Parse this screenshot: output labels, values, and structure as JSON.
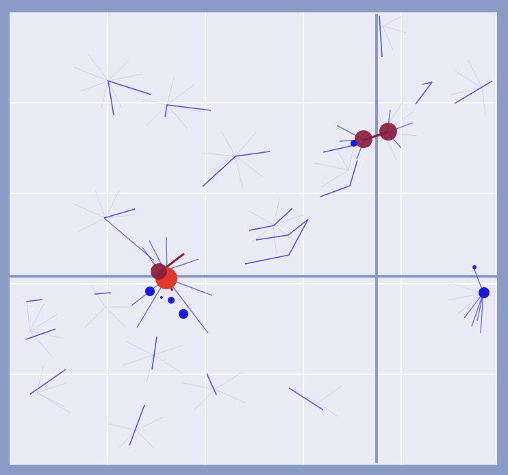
{
  "scene": {
    "type": "simulation-arena",
    "colors": {
      "frame": "#8a9cc6",
      "background": "#e9eaf3",
      "grid": "#ffffff",
      "wall": "#8a9cc6",
      "trace": "#5a59e0",
      "agent_dot": "#1a1ad6",
      "ball_red": "#e23a2a",
      "ball_maroon": "#8a1d3e"
    },
    "icons": [
      "blue-agent-dot",
      "red-ball",
      "maroon-ball"
    ]
  }
}
